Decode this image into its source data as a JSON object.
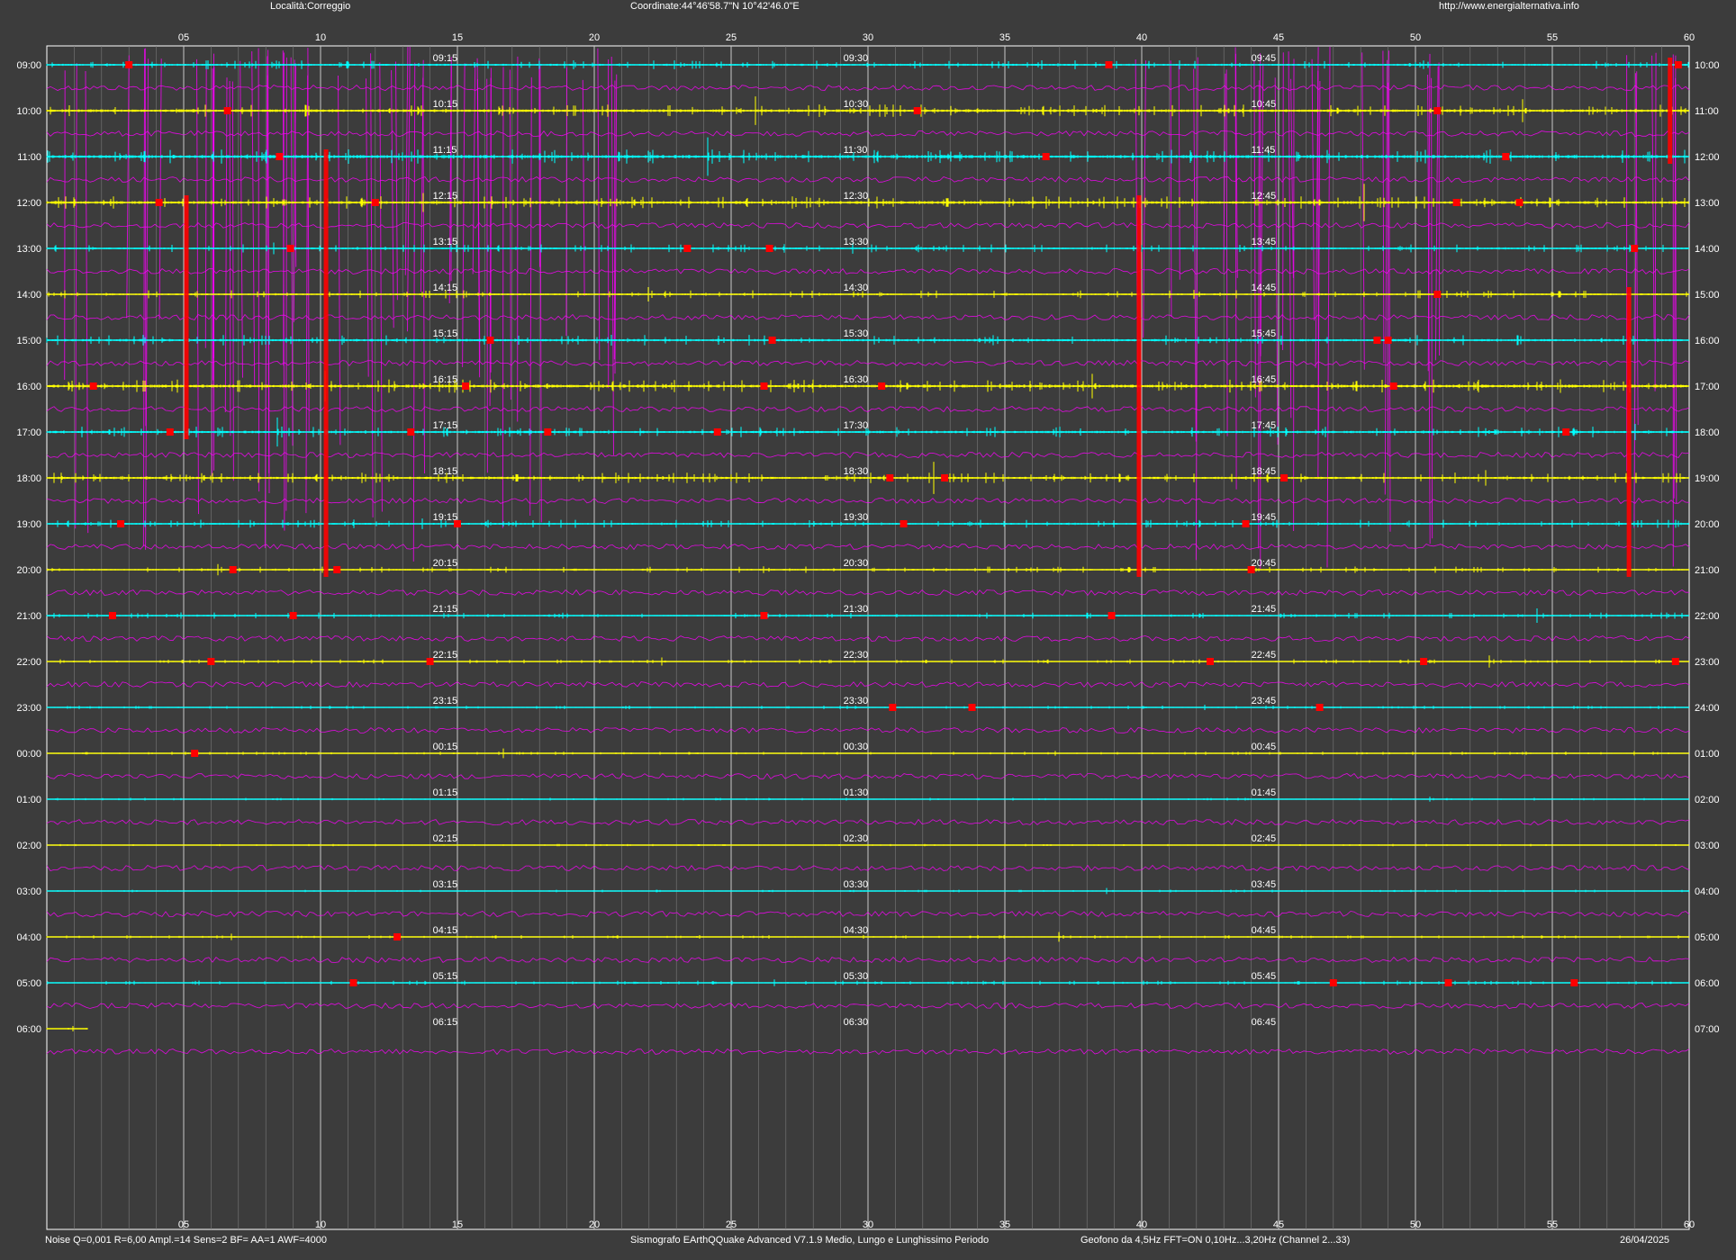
{
  "header": {
    "location": "Località:Correggio",
    "coordinates": "Coordinate:44°46'58.7\"N  10°42'46.0\"E",
    "website": "http://www.energialternativa.info"
  },
  "footer": {
    "settings": "Noise Q=0,001 R=6,00 Ampl.=14 Sens=2 BF= AA=1 AWF=4000",
    "software": "Sismografo  EArthQQuake Advanced V7.1.9  Medio, Lungo e Lunghissimo Periodo",
    "sensor": "Geofono da 4,5Hz FFT=ON 0,10Hz...3,20Hz      (Channel 2...33)",
    "date": "26/04/2025"
  },
  "colors": {
    "background": "#3c3c3c",
    "trace_a": "#00ffff",
    "trace_b": "#ffff00",
    "event_marker": "#ff0000",
    "long_period_trace": "#ff00ff",
    "gridline": "#ffffff"
  },
  "chart_data": {
    "type": "line",
    "subtype": "helicorder",
    "x_axis": {
      "range": [
        0,
        60
      ],
      "top_ticks": [
        "05",
        "10",
        "15",
        "20",
        "25",
        "30",
        "35",
        "40",
        "45",
        "50",
        "55",
        "60"
      ],
      "bottom_ticks": [
        "05",
        "10",
        "15",
        "20",
        "25",
        "30",
        "35",
        "40",
        "45",
        "50",
        "55",
        "60"
      ],
      "minor_step": 1
    },
    "rows": [
      {
        "left": "09:00",
        "right": "10:00",
        "q1": "09:15",
        "q2": "09:30",
        "q3": "09:45",
        "color": "cyan",
        "amp": 0.5,
        "filled": 1
      },
      {
        "left": "10:00",
        "right": "11:00",
        "q1": "10:15",
        "q2": "10:30",
        "q3": "10:45",
        "color": "yellow",
        "amp": 0.7,
        "filled": 1
      },
      {
        "left": "11:00",
        "right": "12:00",
        "q1": "11:15",
        "q2": "11:30",
        "q3": "11:45",
        "color": "cyan",
        "amp": 0.8,
        "filled": 1
      },
      {
        "left": "12:00",
        "right": "13:00",
        "q1": "12:15",
        "q2": "12:30",
        "q3": "12:45",
        "color": "yellow",
        "amp": 0.7,
        "filled": 1
      },
      {
        "left": "13:00",
        "right": "14:00",
        "q1": "13:15",
        "q2": "13:30",
        "q3": "13:45",
        "color": "cyan",
        "amp": 0.45,
        "filled": 1
      },
      {
        "left": "14:00",
        "right": "15:00",
        "q1": "14:15",
        "q2": "14:30",
        "q3": "14:45",
        "color": "yellow",
        "amp": 0.45,
        "filled": 1
      },
      {
        "left": "15:00",
        "right": "16:00",
        "q1": "15:15",
        "q2": "15:30",
        "q3": "15:45",
        "color": "cyan",
        "amp": 0.6,
        "filled": 1
      },
      {
        "left": "16:00",
        "right": "17:00",
        "q1": "16:15",
        "q2": "16:30",
        "q3": "16:45",
        "color": "yellow",
        "amp": 0.75,
        "filled": 1
      },
      {
        "left": "17:00",
        "right": "18:00",
        "q1": "17:15",
        "q2": "17:30",
        "q3": "17:45",
        "color": "cyan",
        "amp": 0.6,
        "filled": 1
      },
      {
        "left": "18:00",
        "right": "19:00",
        "q1": "18:15",
        "q2": "18:30",
        "q3": "18:45",
        "color": "yellow",
        "amp": 0.6,
        "filled": 1
      },
      {
        "left": "19:00",
        "right": "20:00",
        "q1": "19:15",
        "q2": "19:30",
        "q3": "19:45",
        "color": "cyan",
        "amp": 0.45,
        "filled": 1
      },
      {
        "left": "20:00",
        "right": "21:00",
        "q1": "20:15",
        "q2": "20:30",
        "q3": "20:45",
        "color": "yellow",
        "amp": 0.35,
        "filled": 1
      },
      {
        "left": "21:00",
        "right": "22:00",
        "q1": "21:15",
        "q2": "21:30",
        "q3": "21:45",
        "color": "cyan",
        "amp": 0.35,
        "filled": 1
      },
      {
        "left": "22:00",
        "right": "23:00",
        "q1": "22:15",
        "q2": "22:30",
        "q3": "22:45",
        "color": "yellow",
        "amp": 0.25,
        "filled": 1
      },
      {
        "left": "23:00",
        "right": "24:00",
        "q1": "23:15",
        "q2": "23:30",
        "q3": "23:45",
        "color": "cyan",
        "amp": 0.2,
        "filled": 1
      },
      {
        "left": "00:00",
        "right": "01:00",
        "q1": "00:15",
        "q2": "00:30",
        "q3": "00:45",
        "color": "yellow",
        "amp": 0.18,
        "filled": 1
      },
      {
        "left": "01:00",
        "right": "02:00",
        "q1": "01:15",
        "q2": "01:30",
        "q3": "01:45",
        "color": "cyan",
        "amp": 0.15,
        "filled": 1
      },
      {
        "left": "02:00",
        "right": "03:00",
        "q1": "02:15",
        "q2": "02:30",
        "q3": "02:45",
        "color": "yellow",
        "amp": 0.12,
        "filled": 1
      },
      {
        "left": "03:00",
        "right": "04:00",
        "q1": "03:15",
        "q2": "03:30",
        "q3": "03:45",
        "color": "cyan",
        "amp": 0.15,
        "filled": 1
      },
      {
        "left": "04:00",
        "right": "05:00",
        "q1": "04:15",
        "q2": "04:30",
        "q3": "04:45",
        "color": "yellow",
        "amp": 0.2,
        "filled": 1
      },
      {
        "left": "05:00",
        "right": "06:00",
        "q1": "05:15",
        "q2": "05:30",
        "q3": "05:45",
        "color": "cyan",
        "amp": 0.25,
        "filled": 1
      },
      {
        "left": "06:00",
        "right": "07:00",
        "q1": "06:15",
        "q2": "06:30",
        "q3": "06:45",
        "color": "yellow",
        "amp": 0.1,
        "filled": 0.025
      }
    ],
    "events": [
      {
        "row": 0,
        "minute": 3
      },
      {
        "row": 0,
        "minute": 38.8
      },
      {
        "row": 0,
        "minute": 59.6
      },
      {
        "row": 1,
        "minute": 6.6
      },
      {
        "row": 1,
        "minute": 31.8
      },
      {
        "row": 1,
        "minute": 50.8
      },
      {
        "row": 2,
        "minute": 8.5
      },
      {
        "row": 2,
        "minute": 36.5
      },
      {
        "row": 2,
        "minute": 53.3
      },
      {
        "row": 3,
        "minute": 4.1
      },
      {
        "row": 3,
        "minute": 12
      },
      {
        "row": 3,
        "minute": 51.5
      },
      {
        "row": 3,
        "minute": 53.8
      },
      {
        "row": 4,
        "minute": 8.9
      },
      {
        "row": 4,
        "minute": 23.4
      },
      {
        "row": 4,
        "minute": 26.4
      },
      {
        "row": 4,
        "minute": 58
      },
      {
        "row": 5,
        "minute": 50.8
      },
      {
        "row": 6,
        "minute": 16.2
      },
      {
        "row": 6,
        "minute": 26.5
      },
      {
        "row": 6,
        "minute": 48.6
      },
      {
        "row": 6,
        "minute": 49
      },
      {
        "row": 7,
        "minute": 1.7
      },
      {
        "row": 7,
        "minute": 15.3
      },
      {
        "row": 7,
        "minute": 26.2
      },
      {
        "row": 7,
        "minute": 30.5
      },
      {
        "row": 7,
        "minute": 49.2
      },
      {
        "row": 8,
        "minute": 4.5
      },
      {
        "row": 8,
        "minute": 13.3
      },
      {
        "row": 8,
        "minute": 18.3
      },
      {
        "row": 8,
        "minute": 24.5
      },
      {
        "row": 8,
        "minute": 55.5
      },
      {
        "row": 9,
        "minute": 30.8
      },
      {
        "row": 9,
        "minute": 32.8
      },
      {
        "row": 9,
        "minute": 45.2
      },
      {
        "row": 10,
        "minute": 2.7
      },
      {
        "row": 10,
        "minute": 15
      },
      {
        "row": 10,
        "minute": 31.3
      },
      {
        "row": 10,
        "minute": 43.8
      },
      {
        "row": 11,
        "minute": 6.8
      },
      {
        "row": 11,
        "minute": 10.6
      },
      {
        "row": 11,
        "minute": 44
      },
      {
        "row": 12,
        "minute": 2.4
      },
      {
        "row": 12,
        "minute": 9
      },
      {
        "row": 12,
        "minute": 26.2
      },
      {
        "row": 12,
        "minute": 38.9
      },
      {
        "row": 13,
        "minute": 6
      },
      {
        "row": 13,
        "minute": 14
      },
      {
        "row": 13,
        "minute": 42.5
      },
      {
        "row": 13,
        "minute": 50.3
      },
      {
        "row": 13,
        "minute": 59.5
      },
      {
        "row": 14,
        "minute": 30.9
      },
      {
        "row": 14,
        "minute": 33.8
      },
      {
        "row": 14,
        "minute": 46.5
      },
      {
        "row": 15,
        "minute": 5.4
      },
      {
        "row": 19,
        "minute": 12.8
      },
      {
        "row": 20,
        "minute": 11.2
      },
      {
        "row": 20,
        "minute": 47
      },
      {
        "row": 20,
        "minute": 51.2
      },
      {
        "row": 20,
        "minute": 55.8
      }
    ],
    "vertical_bursts": [
      {
        "minute": 5.1,
        "from_row": 3,
        "to_row": 8
      },
      {
        "minute": 10.2,
        "from_row": 2,
        "to_row": 11
      },
      {
        "minute": 39.9,
        "from_row": 3,
        "to_row": 11
      },
      {
        "minute": 57.8,
        "from_row": 5,
        "to_row": 11
      },
      {
        "minute": 59.3,
        "from_row": 0,
        "to_row": 2
      }
    ],
    "long_period_zones": [
      {
        "from_minute": 0,
        "to_minute": 9,
        "from_row": 0,
        "to_row": 12.7
      },
      {
        "from_minute": 9,
        "to_minute": 21.2,
        "from_row": 0,
        "to_row": 11
      },
      {
        "from_minute": 39.7,
        "to_minute": 50.9,
        "from_row": 0,
        "to_row": 11
      },
      {
        "from_minute": 57.2,
        "to_minute": 60,
        "from_row": 0,
        "to_row": 11
      }
    ]
  }
}
